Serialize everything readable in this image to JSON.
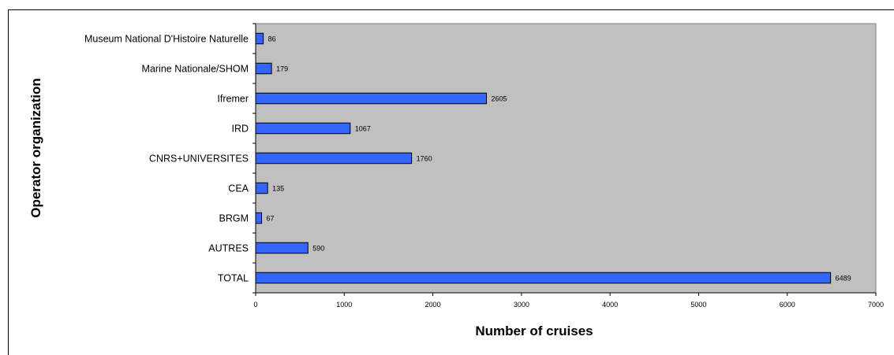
{
  "chart_data": {
    "type": "bar",
    "orientation": "horizontal",
    "categories": [
      "Museum National D'Histoire Naturelle",
      "Marine Nationale/SHOM",
      "Ifremer",
      "IRD",
      "CNRS+UNIVERSITES",
      "CEA",
      "BRGM",
      "AUTRES",
      "TOTAL"
    ],
    "values": [
      86,
      179,
      2605,
      1067,
      1760,
      135,
      67,
      590,
      6489
    ],
    "data_labels": [
      "86",
      "179",
      "2605",
      "1067",
      "1760",
      "135",
      "67",
      "590",
      "6489"
    ],
    "xlabel": "Number of cruises",
    "ylabel": "Operator organization",
    "xlim": [
      0,
      7000
    ],
    "xticks": [
      "0",
      "1000",
      "2000",
      "3000",
      "4000",
      "5000",
      "6000",
      "7000"
    ],
    "grid": false,
    "legend": "none",
    "colors": {
      "bar_fill": "#3366ff",
      "plot_background": "#c0c0c0",
      "bar_stroke": "#000000"
    }
  }
}
